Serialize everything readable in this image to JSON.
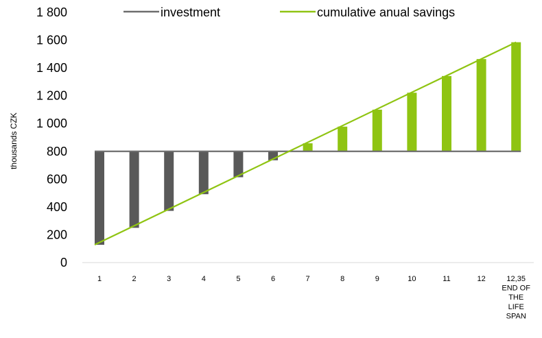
{
  "chart_data": {
    "type": "bar",
    "ylabel": "thousands CZK",
    "ylim": [
      0,
      1800
    ],
    "yticks": [
      0,
      200,
      400,
      600,
      800,
      1000,
      1200,
      1400,
      1600,
      1800
    ],
    "ytick_labels": [
      "0",
      "200",
      "400",
      "600",
      "800",
      "1 000",
      "1 200",
      "1 400",
      "1 600",
      "1 800"
    ],
    "categories": [
      [
        "1"
      ],
      [
        "2"
      ],
      [
        "3"
      ],
      [
        "4"
      ],
      [
        "5"
      ],
      [
        "6"
      ],
      [
        "7"
      ],
      [
        "8"
      ],
      [
        "9"
      ],
      [
        "10"
      ],
      [
        "11"
      ],
      [
        "12"
      ],
      [
        "12,35",
        "END OF",
        "THE",
        "LIFE",
        "SPAN"
      ]
    ],
    "baseline": 800,
    "series": [
      {
        "name": "investment",
        "color": "#6d6d6d",
        "values": [
          800,
          800,
          800,
          800,
          800,
          800,
          800,
          800,
          800,
          800,
          800,
          800,
          800
        ]
      },
      {
        "name": "cumulative anual savings",
        "color": "#8fc412",
        "values": [
          128,
          250,
          372,
          492,
          614,
          736,
          858,
          978,
          1100,
          1222,
          1342,
          1464,
          1585
        ]
      }
    ],
    "bar_colors": {
      "below": "#595959",
      "above": "#8fc412"
    },
    "legend": "top"
  }
}
